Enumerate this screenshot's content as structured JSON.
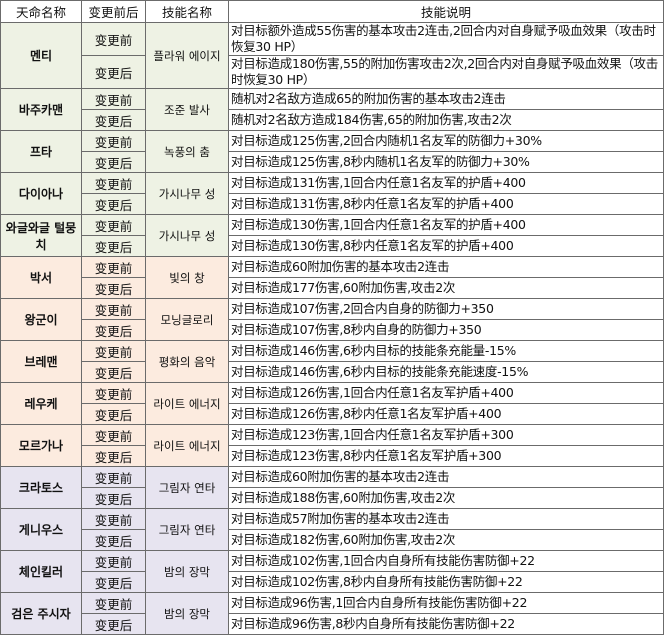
{
  "header": [
    "天命名称",
    "变更前后",
    "技能名称",
    "技能说明"
  ],
  "group_colors": {
    "green": "#eef2e4",
    "orange": "#fcebdf",
    "purple": "#e7e4f0"
  },
  "rows": [
    {
      "name": "멘티",
      "skill": "플라워 에이지",
      "group": "green",
      "tall": true,
      "before_label": "变更前",
      "after_label": "变更后",
      "before": "对目标额外造成55伤害的基本攻击2连击,2回合内对自身赋予吸血效果（攻击时恢复30 HP）",
      "after": "对目标造成180伤害,55的附加伤害攻击2次,2回合内对自身赋予吸血效果（攻击时恢复30 HP）"
    },
    {
      "name": "바주카맨",
      "skill": "조준 발사",
      "group": "green",
      "before_label": "变更前",
      "after_label": "变更后",
      "before": "随机对2名敌方造成65的附加伤害的基本攻击2连击",
      "after": "随机对2名敌方造成184伤害,65的附加伤害,攻击2次"
    },
    {
      "name": "프타",
      "skill": "녹풍의 춤",
      "group": "green",
      "before_label": "变更前",
      "after_label": "变更后",
      "before": "对目标造成125伤害,2回合内随机1名友军的防御力+30%",
      "after": "对目标造成125伤害,8秒内随机1名友军的防御力+30%"
    },
    {
      "name": "다이아나",
      "skill": "가시나무 성",
      "group": "green",
      "before_label": "变更前",
      "after_label": "变更后",
      "before": "对目标造成131伤害,1回合内任意1名友军的护盾+400",
      "after": "对目标造成131伤害,8秒内任意1名友军的护盾+400"
    },
    {
      "name": "와글와글 털뭉치",
      "skill": "가시나무 성",
      "group": "green",
      "before_label": "变更前",
      "after_label": "变更后",
      "before": "对目标造成130伤害,1回合内任意1名友军的护盾+400",
      "after": "对目标造成130伤害,8秒内任意1名友军的护盾+400"
    },
    {
      "name": "박서",
      "skill": "빛의 창",
      "group": "orange",
      "before_label": "变更前",
      "after_label": "变更后",
      "before": "对目标造成60附加伤害的基本攻击2连击",
      "after": "对目标造成177伤害,60附加伤害,攻击2次"
    },
    {
      "name": "왕군이",
      "skill": "모닝글로리",
      "group": "orange",
      "before_label": "变更前",
      "after_label": "变更后",
      "before": "对目标造成107伤害,2回合内自身的防御力+350",
      "after": "对目标造成107伤害,8秒内自身的防御力+350"
    },
    {
      "name": "브레맨",
      "skill": "평화의 음악",
      "group": "orange",
      "before_label": "变更前",
      "after_label": "变更后",
      "before": "对目标造成146伤害,6秒内目标的技能条充能量-15%",
      "after": "对目标造成146伤害,6秒内目标的技能条充能速度-15%"
    },
    {
      "name": "레우케",
      "skill": "라이트 에너지",
      "group": "orange",
      "before_label": "变更前",
      "after_label": "变更后",
      "before": "对目标造成126伤害,1回合内任意1名友军护盾+400",
      "after": "对目标造成126伤害,8秒内任意1名友军护盾+400"
    },
    {
      "name": "모르가나",
      "skill": "라이트 에너지",
      "group": "orange",
      "before_label": "变更前",
      "after_label": "变更后",
      "before": "对目标造成123伤害,1回合内任意1名友军护盾+300",
      "after": "对目标造成123伤害,8秒内任意1名友军护盾+300"
    },
    {
      "name": "크라토스",
      "skill": "그림자 연타",
      "group": "purple",
      "before_label": "变更前",
      "after_label": "变更后",
      "before": "对目标造成60附加伤害的基本攻击2连击",
      "after": "对目标造成188伤害,60附加伤害,攻击2次"
    },
    {
      "name": "게니우스",
      "skill": "그림자 연타",
      "group": "purple",
      "before_label": "变更前",
      "after_label": "变更后",
      "before": "对目标造成57附加伤害的基本攻击2连击",
      "after": "对目标造成182伤害,60附加伤害,攻击2次"
    },
    {
      "name": "체인킬러",
      "skill": "밤의 장막",
      "group": "purple",
      "before_label": "变更前",
      "after_label": "变更后",
      "before": "对目标造成102伤害,1回合内自身所有技能伤害防御+22",
      "after": "对目标造成102伤害,8秒内自身所有技能伤害防御+22"
    },
    {
      "name": "검은 주시자",
      "skill": "밤의 장막",
      "group": "purple",
      "before_label": "变更前",
      "after_label": "变更后",
      "before": "对目标造成96伤害,1回合内自身所有技能伤害防御+22",
      "after": "对目标造成96伤害,8秒内自身所有技能伤害防御+22"
    }
  ]
}
